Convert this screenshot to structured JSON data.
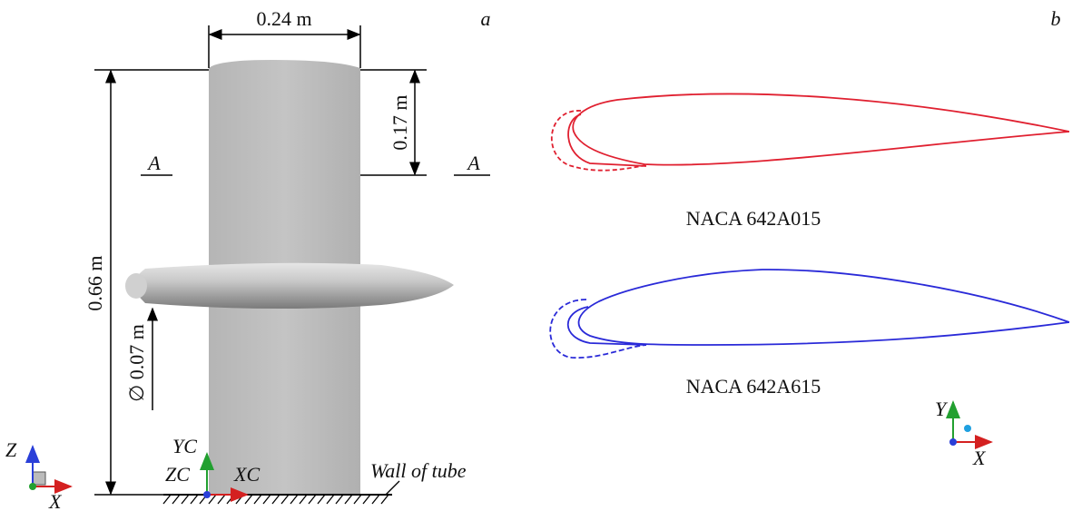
{
  "panel_a": {
    "label": "a",
    "dimensions": {
      "width": "0.24 m",
      "top_height": "0.17 m",
      "height": "0.66 m",
      "diameter": "∅ 0.07 m"
    },
    "section_marks": [
      "A",
      "A"
    ],
    "global_axes": {
      "z": "Z",
      "x": "X"
    },
    "local_axes": {
      "yc": "YC",
      "zc": "ZC",
      "xc": "XC"
    },
    "wall_label": "Wall of tube"
  },
  "panel_b": {
    "label": "b",
    "profiles": [
      {
        "name": "NACA 642A015"
      },
      {
        "name": "NACA 642A615"
      }
    ],
    "axes": {
      "y": "Y",
      "x": "X"
    }
  }
}
